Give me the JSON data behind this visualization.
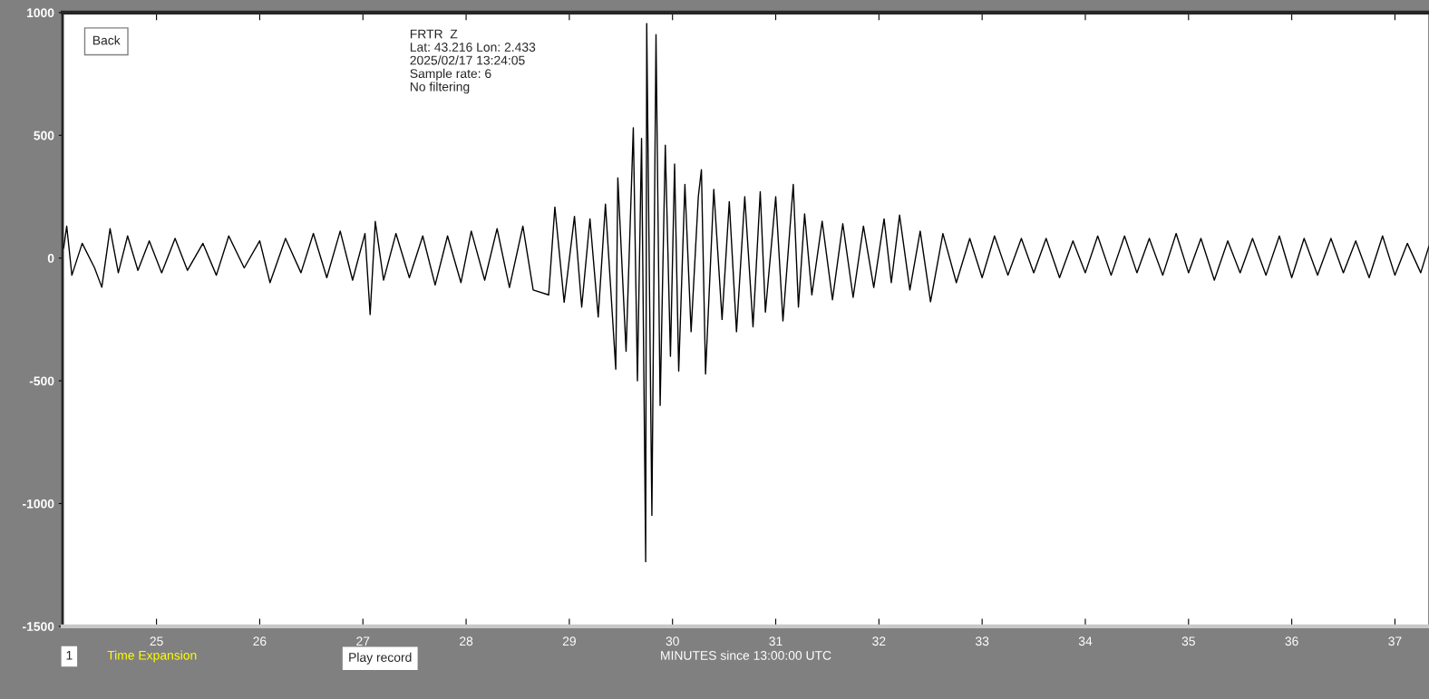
{
  "chart_data": {
    "type": "line",
    "xlabel": "MINUTES since 13:00:00 UTC",
    "xlim": [
      24.09,
      37.33
    ],
    "xticks": [
      25,
      26,
      27,
      28,
      29,
      30,
      31,
      32,
      33,
      34,
      35,
      36,
      37
    ],
    "ylim": [
      -1500,
      1000
    ],
    "yticks": [
      -1500,
      -1000,
      -500,
      0,
      500,
      1000
    ],
    "grid": false,
    "marker": "none",
    "line_style": "solid",
    "annotations": [
      "FRTR  Z",
      "Lat: 43.216 Lon: 2.433",
      "2025/02/17 13:24:05",
      "Sample rate: 6",
      "No filtering",
      "Back",
      "1",
      "Time Expansion",
      "Play record"
    ],
    "series": [
      {
        "color": "#000000",
        "x": [
          24.1,
          24.13,
          24.18,
          24.28,
          24.4,
          24.47,
          24.55,
          24.63,
          24.72,
          24.82,
          24.93,
          25.05,
          25.18,
          25.3,
          25.45,
          25.58,
          25.7,
          25.85,
          26.0,
          26.1,
          26.25,
          26.4,
          26.52,
          26.65,
          26.78,
          26.9,
          27.02,
          27.07,
          27.12,
          27.2,
          27.32,
          27.45,
          27.58,
          27.7,
          27.82,
          27.95,
          28.05,
          28.18,
          28.3,
          28.42,
          28.55,
          28.65,
          28.8,
          28.86,
          28.95,
          29.05,
          29.12,
          29.2,
          29.28,
          29.35,
          29.45,
          29.47,
          29.55,
          29.62,
          29.66,
          29.7,
          29.74,
          29.75,
          29.8,
          29.84,
          29.88,
          29.93,
          29.98,
          30.02,
          30.06,
          30.12,
          30.18,
          30.25,
          30.28,
          30.32,
          30.4,
          30.48,
          30.55,
          30.62,
          30.7,
          30.78,
          30.85,
          30.9,
          31.0,
          31.07,
          31.17,
          31.22,
          31.28,
          31.35,
          31.45,
          31.55,
          31.65,
          31.75,
          31.85,
          31.95,
          32.05,
          32.12,
          32.2,
          32.3,
          32.4,
          32.5,
          32.62,
          32.75,
          32.88,
          33.0,
          33.12,
          33.25,
          33.38,
          33.5,
          33.62,
          33.75,
          33.88,
          34.0,
          34.12,
          34.25,
          34.38,
          34.5,
          34.62,
          34.75,
          34.88,
          35.0,
          35.12,
          35.25,
          35.38,
          35.5,
          35.62,
          35.75,
          35.88,
          36.0,
          36.12,
          36.25,
          36.38,
          36.5,
          36.62,
          36.75,
          36.88,
          37.0,
          37.12,
          37.25,
          37.33
        ],
        "values": [
          40,
          130,
          -70,
          60,
          -40,
          -119,
          120,
          -60,
          90,
          -50,
          70,
          -60,
          80,
          -50,
          60,
          -70,
          90,
          -40,
          70,
          -100,
          80,
          -60,
          100,
          -80,
          110,
          -90,
          100,
          -230,
          149,
          -90,
          100,
          -80,
          90,
          -110,
          90,
          -100,
          110,
          -90,
          120,
          -120,
          130,
          -130,
          -150,
          208,
          -180,
          170,
          -200,
          160,
          -240,
          220,
          -453,
          327,
          -380,
          531,
          -500,
          487,
          -1237,
          955,
          -1048,
          910,
          -600,
          460,
          -400,
          383,
          -460,
          300,
          -300,
          250,
          360,
          -472,
          280,
          -250,
          230,
          -300,
          250,
          -280,
          270,
          -220,
          250,
          -256,
          300,
          -200,
          180,
          -150,
          150,
          -170,
          140,
          -160,
          130,
          -120,
          160,
          -100,
          175,
          -130,
          110,
          -178,
          100,
          -100,
          80,
          -80,
          90,
          -70,
          80,
          -60,
          80,
          -80,
          70,
          -60,
          90,
          -70,
          90,
          -60,
          80,
          -70,
          100,
          -60,
          80,
          -90,
          70,
          -60,
          80,
          -70,
          90,
          -80,
          80,
          -70,
          80,
          -60,
          70,
          -80,
          90,
          -70,
          60,
          -60,
          50
        ]
      }
    ]
  }
}
